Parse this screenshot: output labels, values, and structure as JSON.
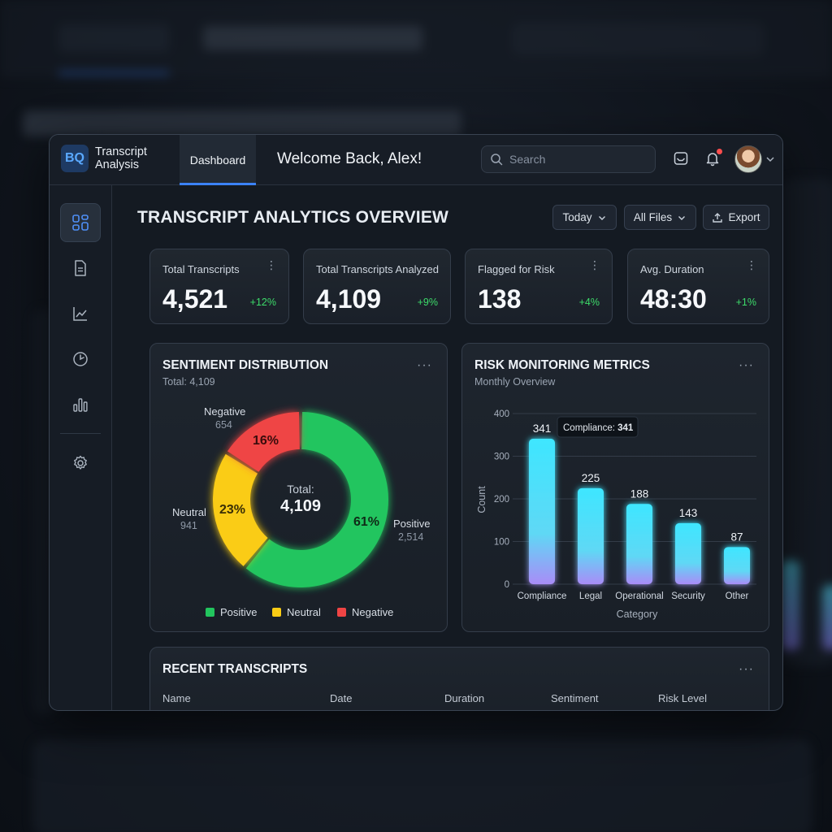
{
  "brand": {
    "logo": "BQ",
    "name": "Transcript Analysis"
  },
  "topbar": {
    "tab": "Dashboard",
    "welcome": "Welcome Back, Alex!",
    "search_placeholder": "Search"
  },
  "sidebar": {
    "items": [
      {
        "icon": "dashboard-grid-icon",
        "active": true
      },
      {
        "icon": "document-icon",
        "active": false
      },
      {
        "icon": "line-chart-icon",
        "active": false
      },
      {
        "icon": "clock-icon",
        "active": false
      },
      {
        "icon": "bar-chart-icon",
        "active": false
      },
      {
        "icon": "settings-gear-icon",
        "active": false
      }
    ]
  },
  "page": {
    "title": "TRANSCRIPT ANALYTICS OVERVIEW",
    "filters": {
      "range": "Today",
      "files": "All Files",
      "export": "Export"
    }
  },
  "kpis": [
    {
      "label": "Total Transcripts",
      "value": "4,521",
      "delta": "+12%"
    },
    {
      "label": "Total Transcripts Analyzed",
      "value": "4,109",
      "delta": "+9%"
    },
    {
      "label": "Flagged for Risk",
      "value": "138",
      "delta": "+4%"
    },
    {
      "label": "Avg. Duration",
      "value": "48:30",
      "delta": "+1%"
    }
  ],
  "sentiment": {
    "title": "SENTIMENT DISTRIBUTION",
    "subtitle": "Total: 4,109",
    "center_label": "Total:",
    "center_value": "4,109",
    "slices": [
      {
        "name": "Positive",
        "count": "2,514",
        "percent": "61%",
        "value": 61,
        "color": "#22c55e"
      },
      {
        "name": "Neutral",
        "count": "941",
        "percent": "23%",
        "value": 23,
        "color": "#facc15"
      },
      {
        "name": "Negative",
        "count": "654",
        "percent": "16%",
        "value": 16,
        "color": "#ef4444"
      }
    ],
    "legend": [
      "Positive",
      "Neutral",
      "Negative"
    ]
  },
  "risk": {
    "title": "RISK MONITORING METRICS",
    "subtitle": "Monthly Overview",
    "tooltip_label": "Compliance:",
    "tooltip_value": "341"
  },
  "chart_data": {
    "type": "bar",
    "title": "RISK MONITORING METRICS",
    "subtitle": "Monthly Overview",
    "xlabel": "Category",
    "ylabel": "Count",
    "categories": [
      "Compliance",
      "Legal",
      "Operational",
      "Security",
      "Other"
    ],
    "values": [
      341,
      225,
      188,
      143,
      87
    ],
    "ylim": [
      0,
      400
    ],
    "yticks": [
      "0",
      "100",
      "200",
      "300",
      "400"
    ],
    "grid": true
  },
  "recent": {
    "title": "RECENT TRANSCRIPTS",
    "columns": [
      "Name",
      "Date",
      "Duration",
      "Sentiment",
      "Risk Level"
    ]
  }
}
